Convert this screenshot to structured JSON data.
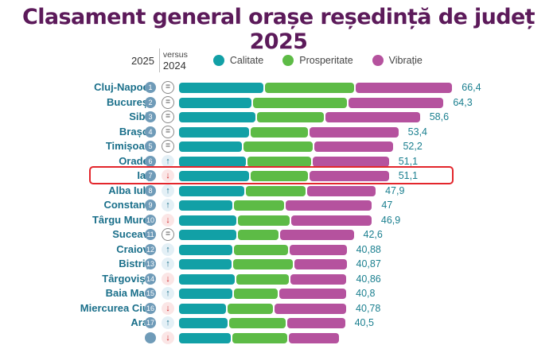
{
  "chart_data": {
    "type": "bar",
    "orientation": "horizontal",
    "stacked": true,
    "title": "Clasament general orașe reședință de județ 2025",
    "legend_header": {
      "year": "2025",
      "versus_label": "versus",
      "versus_year": "2024"
    },
    "series": [
      {
        "name": "Calitate",
        "color": "#12a0a6"
      },
      {
        "name": "Prosperitate",
        "color": "#5dbb46"
      },
      {
        "name": "Vibrație",
        "color": "#b5529e"
      }
    ],
    "legend_position": "top",
    "highlighted_city": "Iași",
    "rows": [
      {
        "city": "Cluj-Napoca",
        "rank": "1",
        "change": "same",
        "total_label": "66,4",
        "total": 66.4,
        "segments": [
          20.8,
          21.9,
          23.7
        ]
      },
      {
        "city": "București",
        "rank": "2",
        "change": "same",
        "total_label": "64,3",
        "total": 64.3,
        "segments": [
          17.9,
          23.0,
          23.4
        ]
      },
      {
        "city": "Sibiu",
        "rank": "3",
        "change": "same",
        "total_label": "58,6",
        "total": 58.6,
        "segments": [
          18.9,
          16.5,
          23.2
        ]
      },
      {
        "city": "Brașov",
        "rank": "4",
        "change": "same",
        "total_label": "53,4",
        "total": 53.4,
        "segments": [
          17.3,
          14.2,
          21.9
        ]
      },
      {
        "city": "Timișoara",
        "rank": "5",
        "change": "same",
        "total_label": "52,2",
        "total": 52.2,
        "segments": [
          15.6,
          17.0,
          19.6
        ]
      },
      {
        "city": "Oradea",
        "rank": "6",
        "change": "up",
        "total_label": "51,1",
        "total": 51.1,
        "segments": [
          16.6,
          15.8,
          18.7
        ]
      },
      {
        "city": "Iași",
        "rank": "7",
        "change": "down",
        "total_label": "51,1",
        "total": 51.1,
        "segments": [
          17.4,
          14.2,
          19.5
        ]
      },
      {
        "city": "Alba Iulia",
        "rank": "8",
        "change": "up",
        "total_label": "47,9",
        "total": 47.9,
        "segments": [
          16.1,
          14.8,
          17.0
        ]
      },
      {
        "city": "Constanța",
        "rank": "9",
        "change": "up",
        "total_label": "47",
        "total": 47.0,
        "segments": [
          13.2,
          12.5,
          21.3
        ]
      },
      {
        "city": "Târgu Mureș",
        "rank": "10",
        "change": "down",
        "total_label": "46,9",
        "total": 46.9,
        "segments": [
          14.2,
          12.9,
          19.8
        ]
      },
      {
        "city": "Suceava",
        "rank": "11",
        "change": "same",
        "total_label": "42,6",
        "total": 42.6,
        "segments": [
          14.3,
          10.1,
          18.2
        ]
      },
      {
        "city": "Craiova",
        "rank": "12",
        "change": "up",
        "total_label": "40,88",
        "total": 40.88,
        "segments": [
          13.3,
          13.5,
          14.08
        ]
      },
      {
        "city": "Bistrița",
        "rank": "13",
        "change": "up",
        "total_label": "40,87",
        "total": 40.87,
        "segments": [
          13.1,
          14.7,
          13.07
        ]
      },
      {
        "city": "Târgoviște",
        "rank": "14",
        "change": "down",
        "total_label": "40,86",
        "total": 40.86,
        "segments": [
          13.9,
          13.0,
          13.96
        ]
      },
      {
        "city": "Baia Mare",
        "rank": "15",
        "change": "up",
        "total_label": "40,8",
        "total": 40.8,
        "segments": [
          13.3,
          10.9,
          16.6
        ]
      },
      {
        "city": "Miercurea Ciuc",
        "rank": "16",
        "change": "down",
        "total_label": "40,78",
        "total": 40.78,
        "segments": [
          11.8,
          11.2,
          17.78
        ]
      },
      {
        "city": "Arad",
        "rank": "17",
        "change": "up",
        "total_label": "40,5",
        "total": 40.5,
        "segments": [
          12.2,
          14.0,
          14.3
        ]
      },
      {
        "city": "",
        "rank": "",
        "change": "down",
        "total_label": "",
        "total": 39.0,
        "segments": [
          12.9,
          13.7,
          12.4
        ],
        "partial": true
      }
    ]
  }
}
